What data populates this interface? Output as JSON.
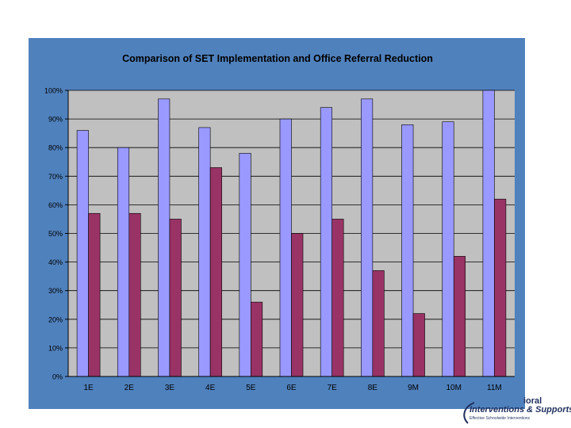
{
  "chart_data": {
    "type": "bar",
    "title": "Comparison of SET Implementation and Office Referral Reduction",
    "xlabel": "",
    "ylabel": "",
    "ylim": [
      0,
      100
    ],
    "yticks": [
      "0%",
      "10%",
      "20%",
      "30%",
      "40%",
      "50%",
      "60%",
      "70%",
      "80%",
      "90%",
      "100%"
    ],
    "grid": true,
    "legend": "none",
    "categories": [
      "1E",
      "2E",
      "3E",
      "4E",
      "5E",
      "6E",
      "7E",
      "8E",
      "9M",
      "10M",
      "11M"
    ],
    "series": [
      {
        "values": [
          86,
          80,
          97,
          87,
          78,
          90,
          94,
          97,
          88,
          89,
          100
        ],
        "color": "#9999ff"
      },
      {
        "values": [
          57,
          57,
          55,
          73,
          26,
          50,
          55,
          37,
          22,
          42,
          62
        ],
        "color": "#993366"
      }
    ],
    "colors": {
      "background": "#4f81bd",
      "plot_area": "#c0c0c0"
    }
  },
  "logo": {
    "line1": "ioral",
    "line2": "Interventions & Supports",
    "line3": "Effective Schoolwide Interventions"
  }
}
